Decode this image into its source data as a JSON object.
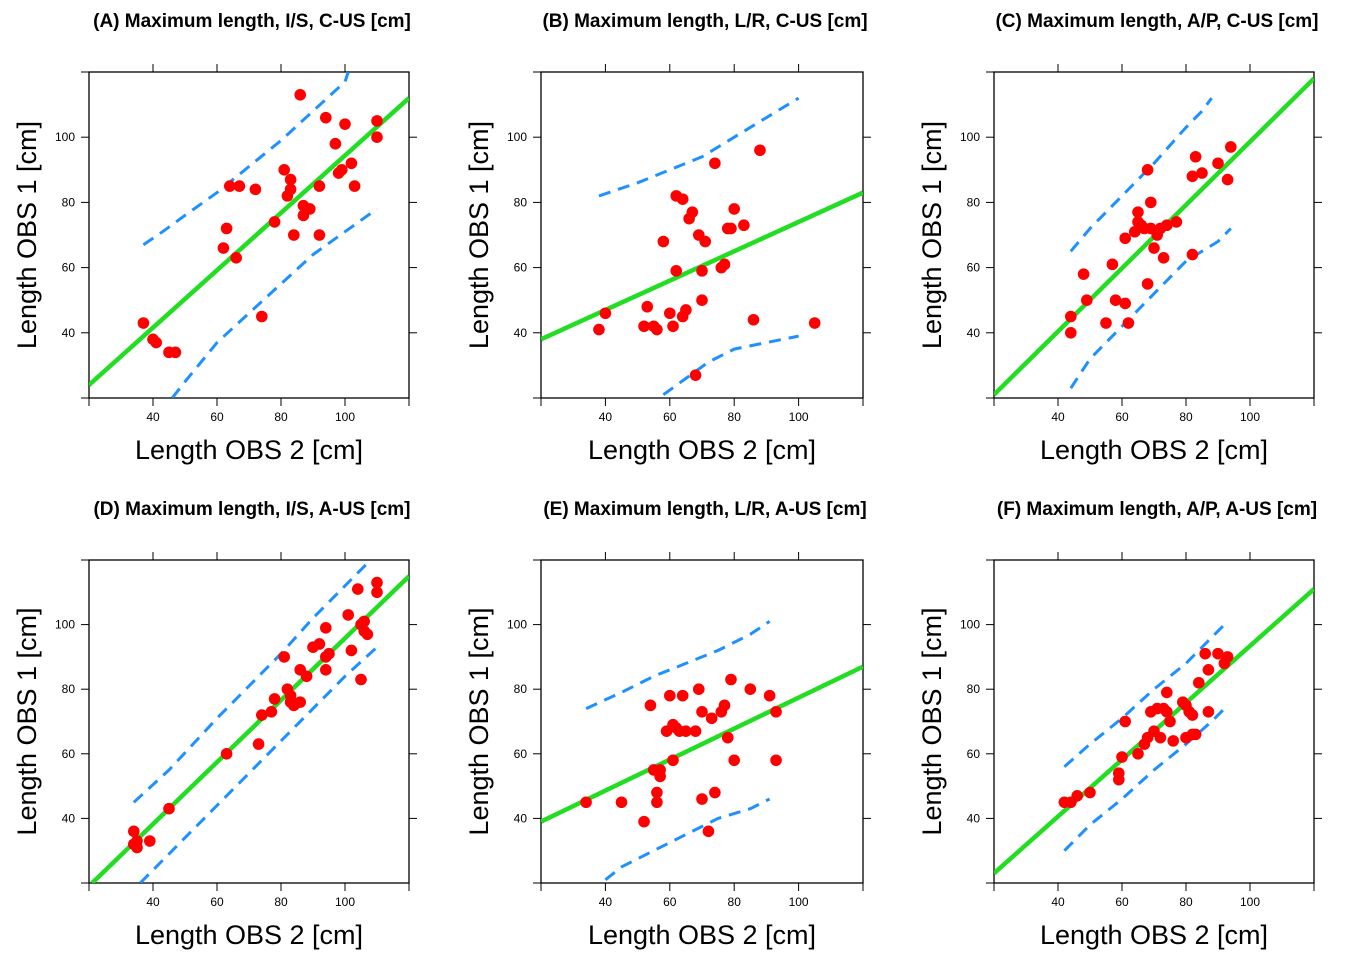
{
  "colors": {
    "points": "#ff0000",
    "regression_line": "#22dd22",
    "prediction_band": "#1e90ff",
    "frame": "#000000"
  },
  "chart_data": [
    {
      "type": "scatter",
      "title": "(A) Maximum length, I/S, C-US [cm]",
      "xlabel": "Length OBS 2 [cm]",
      "ylabel": "Length OBS 1 [cm]",
      "xlim": [
        20,
        120
      ],
      "ylim": [
        20,
        120
      ],
      "xticks": [
        40,
        60,
        80,
        100
      ],
      "yticks": [
        40,
        60,
        80,
        100
      ],
      "regression_line": [
        [
          20,
          24
        ],
        [
          120,
          112
        ]
      ],
      "prediction_upper": [
        [
          37,
          67
        ],
        [
          43,
          71
        ],
        [
          50,
          76
        ],
        [
          60,
          83
        ],
        [
          70,
          91
        ],
        [
          80,
          99
        ],
        [
          90,
          108
        ],
        [
          100,
          117
        ],
        [
          101,
          120
        ]
      ],
      "prediction_lower": [
        [
          46,
          20
        ],
        [
          50,
          25
        ],
        [
          60,
          37
        ],
        [
          70,
          46
        ],
        [
          80,
          55
        ],
        [
          90,
          64
        ],
        [
          100,
          71
        ],
        [
          110,
          78
        ]
      ],
      "points": [
        [
          37,
          43
        ],
        [
          40,
          38
        ],
        [
          41,
          37
        ],
        [
          45,
          34
        ],
        [
          47,
          34
        ],
        [
          62,
          66
        ],
        [
          63,
          72
        ],
        [
          64,
          85
        ],
        [
          66,
          63
        ],
        [
          67,
          85
        ],
        [
          72,
          84
        ],
        [
          74,
          45
        ],
        [
          78,
          74
        ],
        [
          81,
          90
        ],
        [
          82,
          82
        ],
        [
          83,
          87
        ],
        [
          83,
          84
        ],
        [
          84,
          70
        ],
        [
          86,
          113
        ],
        [
          87,
          76
        ],
        [
          87,
          79
        ],
        [
          89,
          78
        ],
        [
          92,
          70
        ],
        [
          92,
          85
        ],
        [
          94,
          106
        ],
        [
          97,
          98
        ],
        [
          98,
          89
        ],
        [
          99,
          90
        ],
        [
          100,
          104
        ],
        [
          102,
          92
        ],
        [
          103,
          85
        ],
        [
          110,
          105
        ],
        [
          110,
          100
        ]
      ]
    },
    {
      "type": "scatter",
      "title": "(B) Maximum length, L/R, C-US [cm]",
      "xlabel": "Length OBS 2 [cm]",
      "ylabel": "Length OBS 1 [cm]",
      "xlim": [
        20,
        120
      ],
      "ylim": [
        20,
        120
      ],
      "xticks": [
        40,
        60,
        80,
        100
      ],
      "yticks": [
        40,
        60,
        80,
        100
      ],
      "regression_line": [
        [
          20,
          38
        ],
        [
          120,
          83
        ]
      ],
      "prediction_upper": [
        [
          38,
          82
        ],
        [
          50,
          86
        ],
        [
          60,
          90
        ],
        [
          70,
          94
        ],
        [
          80,
          100
        ],
        [
          90,
          106
        ],
        [
          100,
          112
        ]
      ],
      "prediction_lower": [
        [
          58,
          21
        ],
        [
          65,
          26
        ],
        [
          72,
          31
        ],
        [
          80,
          35
        ],
        [
          90,
          37
        ],
        [
          100,
          39
        ]
      ],
      "points": [
        [
          38,
          41
        ],
        [
          40,
          46
        ],
        [
          52,
          42
        ],
        [
          53,
          48
        ],
        [
          55,
          42
        ],
        [
          56,
          41
        ],
        [
          58,
          68
        ],
        [
          60,
          46
        ],
        [
          61,
          42
        ],
        [
          62,
          82
        ],
        [
          62,
          59
        ],
        [
          64,
          81
        ],
        [
          64,
          45
        ],
        [
          65,
          47
        ],
        [
          66,
          75
        ],
        [
          67,
          77
        ],
        [
          68,
          27
        ],
        [
          69,
          70
        ],
        [
          70,
          59
        ],
        [
          70,
          50
        ],
        [
          71,
          68
        ],
        [
          74,
          92
        ],
        [
          76,
          60
        ],
        [
          77,
          61
        ],
        [
          78,
          72
        ],
        [
          79,
          72
        ],
        [
          80,
          78
        ],
        [
          83,
          73
        ],
        [
          86,
          44
        ],
        [
          88,
          96
        ],
        [
          105,
          43
        ]
      ]
    },
    {
      "type": "scatter",
      "title": "(C) Maximum length, A/P, C-US [cm]",
      "xlabel": "Length OBS 2 [cm]",
      "ylabel": "Length OBS 1 [cm]",
      "xlim": [
        20,
        120
      ],
      "ylim": [
        20,
        120
      ],
      "xticks": [
        40,
        60,
        80,
        100
      ],
      "yticks": [
        40,
        60,
        80,
        100
      ],
      "regression_line": [
        [
          20,
          21
        ],
        [
          120,
          118
        ]
      ],
      "prediction_upper": [
        [
          44,
          65
        ],
        [
          50,
          72
        ],
        [
          60,
          82
        ],
        [
          70,
          92
        ],
        [
          80,
          103
        ],
        [
          85,
          108
        ],
        [
          88,
          112
        ]
      ],
      "prediction_lower": [
        [
          44,
          23
        ],
        [
          50,
          32
        ],
        [
          60,
          42
        ],
        [
          70,
          52
        ],
        [
          80,
          62
        ],
        [
          90,
          68
        ],
        [
          94,
          72
        ]
      ],
      "points": [
        [
          44,
          45
        ],
        [
          44,
          40
        ],
        [
          48,
          58
        ],
        [
          49,
          50
        ],
        [
          55,
          43
        ],
        [
          57,
          61
        ],
        [
          58,
          50
        ],
        [
          61,
          69
        ],
        [
          61,
          49
        ],
        [
          62,
          43
        ],
        [
          64,
          71
        ],
        [
          65,
          77
        ],
        [
          65,
          74
        ],
        [
          66,
          73
        ],
        [
          67,
          72
        ],
        [
          68,
          90
        ],
        [
          68,
          55
        ],
        [
          69,
          72
        ],
        [
          69,
          80
        ],
        [
          70,
          66
        ],
        [
          71,
          70
        ],
        [
          72,
          72
        ],
        [
          73,
          63
        ],
        [
          74,
          73
        ],
        [
          77,
          74
        ],
        [
          82,
          88
        ],
        [
          82,
          64
        ],
        [
          83,
          94
        ],
        [
          85,
          89
        ],
        [
          90,
          92
        ],
        [
          93,
          87
        ],
        [
          94,
          97
        ]
      ]
    },
    {
      "type": "scatter",
      "title": "(D) Maximum length, I/S, A-US [cm]",
      "xlabel": "Length OBS 2 [cm]",
      "ylabel": "Length OBS 1 [cm]",
      "xlim": [
        20,
        120
      ],
      "ylim": [
        20,
        120
      ],
      "xticks": [
        40,
        60,
        80,
        100
      ],
      "yticks": [
        40,
        60,
        80,
        100
      ],
      "regression_line": [
        [
          21,
          20
        ],
        [
          120,
          115
        ]
      ],
      "prediction_upper": [
        [
          34,
          45
        ],
        [
          45,
          55
        ],
        [
          60,
          71
        ],
        [
          70,
          81
        ],
        [
          80,
          91
        ],
        [
          90,
          102
        ],
        [
          100,
          112
        ],
        [
          108,
          120
        ]
      ],
      "prediction_lower": [
        [
          36,
          20
        ],
        [
          45,
          29
        ],
        [
          60,
          44
        ],
        [
          70,
          54
        ],
        [
          80,
          64
        ],
        [
          90,
          74
        ],
        [
          100,
          84
        ],
        [
          110,
          93
        ]
      ],
      "points": [
        [
          34,
          36
        ],
        [
          34,
          32
        ],
        [
          35,
          33
        ],
        [
          35,
          31
        ],
        [
          39,
          33
        ],
        [
          45,
          43
        ],
        [
          63,
          60
        ],
        [
          73,
          63
        ],
        [
          74,
          72
        ],
        [
          77,
          73
        ],
        [
          78,
          77
        ],
        [
          81,
          90
        ],
        [
          82,
          80
        ],
        [
          83,
          78
        ],
        [
          83,
          76
        ],
        [
          84,
          75
        ],
        [
          86,
          76
        ],
        [
          86,
          86
        ],
        [
          88,
          84
        ],
        [
          90,
          93
        ],
        [
          92,
          94
        ],
        [
          94,
          90
        ],
        [
          94,
          86
        ],
        [
          94,
          99
        ],
        [
          95,
          91
        ],
        [
          101,
          103
        ],
        [
          102,
          92
        ],
        [
          104,
          111
        ],
        [
          105,
          83
        ],
        [
          105,
          100
        ],
        [
          106,
          98
        ],
        [
          106,
          101
        ],
        [
          107,
          97
        ],
        [
          110,
          113
        ],
        [
          110,
          110
        ]
      ]
    },
    {
      "type": "scatter",
      "title": "(E) Maximum length, L/R, A-US [cm]",
      "xlabel": "Length OBS 2 [cm]",
      "ylabel": "Length OBS 1 [cm]",
      "xlim": [
        20,
        120
      ],
      "ylim": [
        20,
        120
      ],
      "xticks": [
        40,
        60,
        80,
        100
      ],
      "yticks": [
        40,
        60,
        80,
        100
      ],
      "regression_line": [
        [
          20,
          39
        ],
        [
          120,
          87
        ]
      ],
      "prediction_upper": [
        [
          34,
          74
        ],
        [
          45,
          79
        ],
        [
          55,
          84
        ],
        [
          65,
          88
        ],
        [
          75,
          92
        ],
        [
          85,
          97
        ],
        [
          91,
          101
        ]
      ],
      "prediction_lower": [
        [
          40,
          21
        ],
        [
          45,
          25
        ],
        [
          55,
          30
        ],
        [
          65,
          35
        ],
        [
          75,
          40
        ],
        [
          85,
          43
        ],
        [
          91,
          46
        ]
      ],
      "points": [
        [
          34,
          45
        ],
        [
          45,
          45
        ],
        [
          52,
          39
        ],
        [
          54,
          75
        ],
        [
          55,
          55
        ],
        [
          56,
          48
        ],
        [
          56,
          45
        ],
        [
          57,
          53
        ],
        [
          57,
          55
        ],
        [
          59,
          67
        ],
        [
          60,
          78
        ],
        [
          61,
          58
        ],
        [
          61,
          69
        ],
        [
          62,
          68
        ],
        [
          63,
          67
        ],
        [
          64,
          78
        ],
        [
          65,
          67
        ],
        [
          68,
          67
        ],
        [
          69,
          80
        ],
        [
          70,
          46
        ],
        [
          70,
          73
        ],
        [
          72,
          36
        ],
        [
          73,
          71
        ],
        [
          74,
          48
        ],
        [
          76,
          73
        ],
        [
          77,
          75
        ],
        [
          78,
          65
        ],
        [
          79,
          83
        ],
        [
          80,
          58
        ],
        [
          85,
          80
        ],
        [
          91,
          78
        ],
        [
          93,
          73
        ],
        [
          93,
          58
        ]
      ]
    },
    {
      "type": "scatter",
      "title": "(F) Maximum length, A/P, A-US [cm]",
      "xlabel": "Length OBS 2 [cm]",
      "ylabel": "Length OBS 1 [cm]",
      "xlim": [
        20,
        120
      ],
      "ylim": [
        20,
        120
      ],
      "xticks": [
        40,
        60,
        80,
        100
      ],
      "yticks": [
        40,
        60,
        80,
        100
      ],
      "regression_line": [
        [
          20,
          23
        ],
        [
          120,
          111
        ]
      ],
      "prediction_upper": [
        [
          42,
          56
        ],
        [
          50,
          63
        ],
        [
          60,
          71
        ],
        [
          70,
          80
        ],
        [
          80,
          88
        ],
        [
          88,
          96
        ],
        [
          92,
          100
        ]
      ],
      "prediction_lower": [
        [
          42,
          30
        ],
        [
          50,
          38
        ],
        [
          60,
          46
        ],
        [
          70,
          55
        ],
        [
          80,
          63
        ],
        [
          88,
          70
        ],
        [
          92,
          74
        ]
      ],
      "points": [
        [
          42,
          45
        ],
        [
          44,
          45
        ],
        [
          46,
          47
        ],
        [
          50,
          48
        ],
        [
          59,
          54
        ],
        [
          59,
          52
        ],
        [
          60,
          59
        ],
        [
          61,
          70
        ],
        [
          65,
          60
        ],
        [
          67,
          63
        ],
        [
          68,
          65
        ],
        [
          69,
          73
        ],
        [
          70,
          67
        ],
        [
          71,
          74
        ],
        [
          72,
          65
        ],
        [
          73,
          74
        ],
        [
          74,
          79
        ],
        [
          74,
          73
        ],
        [
          75,
          70
        ],
        [
          76,
          64
        ],
        [
          79,
          76
        ],
        [
          80,
          75
        ],
        [
          80,
          65
        ],
        [
          81,
          73
        ],
        [
          82,
          66
        ],
        [
          82,
          72
        ],
        [
          83,
          66
        ],
        [
          84,
          82
        ],
        [
          86,
          91
        ],
        [
          87,
          73
        ],
        [
          87,
          86
        ],
        [
          90,
          91
        ],
        [
          92,
          88
        ],
        [
          93,
          90
        ]
      ]
    }
  ]
}
